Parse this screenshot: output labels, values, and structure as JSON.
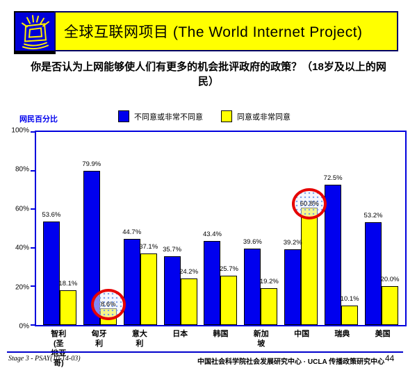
{
  "header": {
    "title": "全球互联网项目 (The World Internet Project)",
    "banner_color": "#FFFF00",
    "logo_color": "#0000D8",
    "logo_icon": "shining-monitor"
  },
  "question": "你是否认为上网能够使人们有更多的机会批评政府的政策？（18岁及以上的网民）",
  "legend": {
    "axis_title": "网民百分比",
    "items": [
      {
        "label": "不同意或非常不同意",
        "color": "#0000EE"
      },
      {
        "label": "同意或非常同意",
        "color": "#FFFF00"
      }
    ]
  },
  "chart_data": {
    "type": "bar",
    "title": "你是否认为上网能够使人们有更多的机会批评政府的政策？（18岁及以上的网民）",
    "ylabel": "网民百分比",
    "ylim": [
      0,
      100
    ],
    "yticks": [
      "100%",
      "80%",
      "60%",
      "40%",
      "20%",
      "0%"
    ],
    "grid": false,
    "legend_position": "top",
    "categories": [
      "智利\n(圣地亚哥)",
      "匈牙利",
      "意大利",
      "日本",
      "韩国",
      "新加坡",
      "中国",
      "瑞典",
      "美国"
    ],
    "series": [
      {
        "name": "不同意或非常不同意",
        "color": "#0000EE",
        "values": [
          53.6,
          79.9,
          44.7,
          35.7,
          43.4,
          39.6,
          39.2,
          72.5,
          53.2
        ],
        "labels": [
          "53.6%",
          "79.9%",
          "44.7%",
          "35.7%",
          "43.4%",
          "39.6%",
          "39.2%",
          "72.5%",
          "53.2%"
        ]
      },
      {
        "name": "同意或非常同意",
        "color": "#FFFF00",
        "values": [
          18.1,
          8.6,
          37.1,
          24.2,
          25.7,
          19.2,
          60.8,
          10.1,
          20.0
        ],
        "labels": [
          "18.1%",
          "8.6%",
          "37.1%",
          "24.2%",
          "25.7%",
          "19.2%",
          "60.8%",
          "10.1%",
          "20.0%"
        ]
      }
    ],
    "annotations": [
      {
        "type": "circle",
        "category": "匈牙利",
        "category_index": 1,
        "series_index": 1,
        "label": "8.6%",
        "color": "#E60000"
      },
      {
        "type": "circle",
        "category": "中国",
        "category_index": 6,
        "series_index": 1,
        "label": "60.8%",
        "color": "#E60000"
      }
    ]
  },
  "footer": {
    "left": "Stage 3 - PSAY(10-14-03)",
    "center": "中国社会科学院社会发展研究中心 · UCLA 传播政策研究中心",
    "page": "44"
  }
}
